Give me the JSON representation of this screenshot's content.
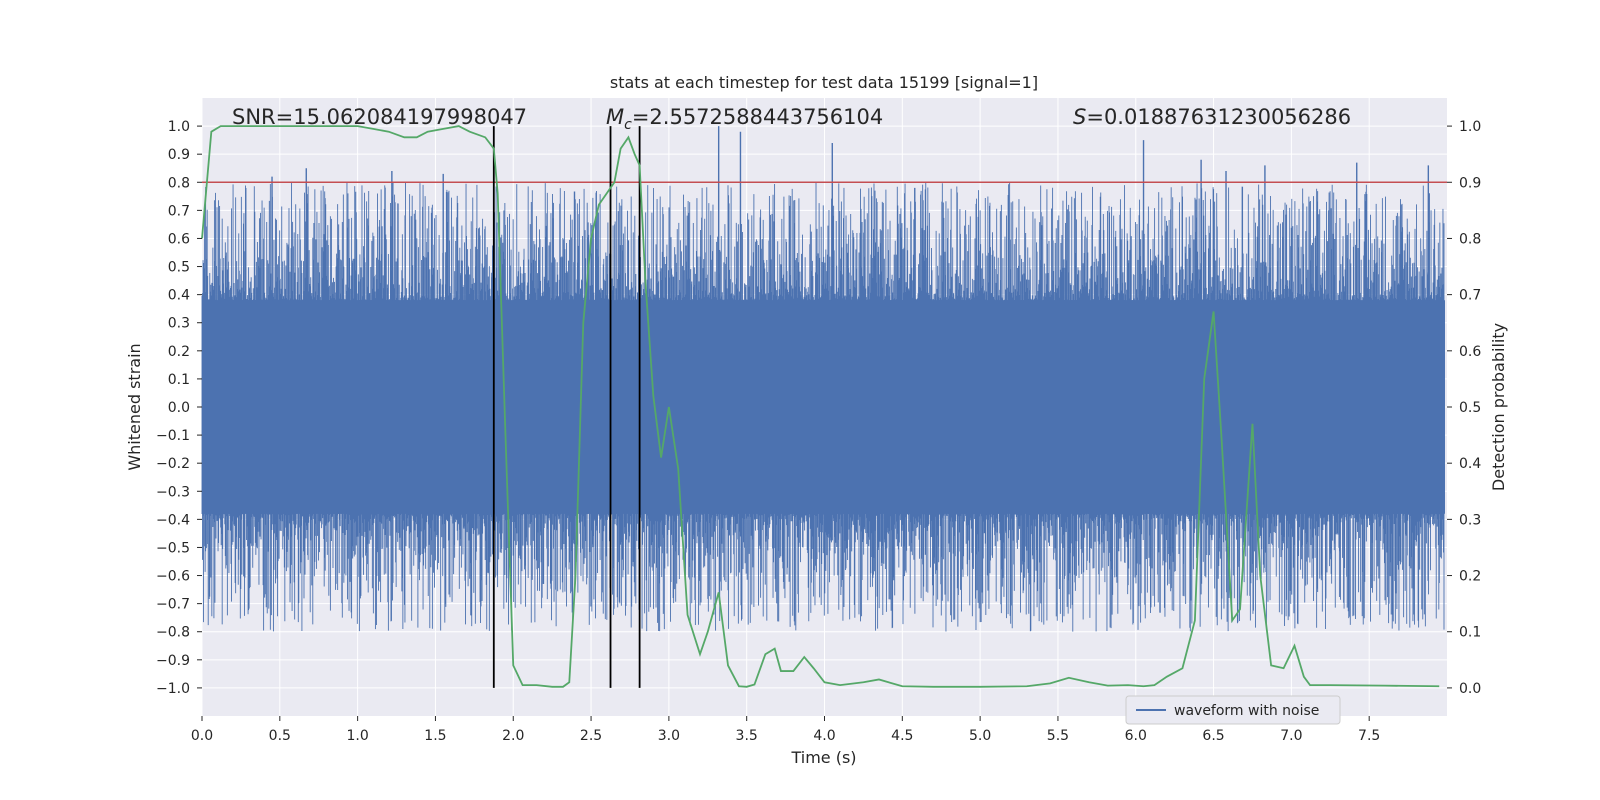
{
  "chart_data": {
    "type": "line",
    "title": "stats at each timestep for test data 15199 [signal=1]",
    "xlabel": "Time (s)",
    "ylabel_left": "Whitened strain",
    "ylabel_right": "Detection probability",
    "xlim": [
      0.0,
      8.0
    ],
    "ylim_left": [
      -1.1,
      1.1
    ],
    "ylim_right": [
      -0.05,
      1.05
    ],
    "x_ticks": [
      "0.0",
      "0.5",
      "1.0",
      "1.5",
      "2.0",
      "2.5",
      "3.0",
      "3.5",
      "4.0",
      "4.5",
      "5.0",
      "5.5",
      "6.0",
      "6.5",
      "7.0",
      "7.5"
    ],
    "y_ticks_left": [
      "1.0",
      "0.9",
      "0.8",
      "0.7",
      "0.6",
      "0.5",
      "0.4",
      "0.3",
      "0.2",
      "0.1",
      "0.0",
      "−0.1",
      "−0.2",
      "−0.3",
      "−0.4",
      "−0.5",
      "−0.6",
      "−0.7",
      "−0.8",
      "−0.9",
      "−1.0"
    ],
    "y_ticks_right": [
      "1.0",
      "0.9",
      "0.8",
      "0.7",
      "0.6",
      "0.5",
      "0.4",
      "0.3",
      "0.2",
      "0.1",
      "0.0"
    ],
    "grid": true,
    "legend": {
      "label": "waveform with noise",
      "placement": "lower-right"
    },
    "threshold_line": {
      "value": 0.9,
      "axis": "right",
      "color": "#c44e52"
    },
    "vertical_markers": [
      1.875,
      2.625,
      2.812
    ],
    "annotations": {
      "snr": "SNR=15.062084197998047",
      "mc_symbol": "M",
      "mc_sub": "c",
      "mc_value": "=2.5572588443756104",
      "s_symbol": "S",
      "s_value": "=0.01887631230056286"
    },
    "series": [
      {
        "name": "waveform with noise",
        "axis": "left",
        "color": "#4c72b0",
        "kind": "dense noise, samples within about ±0.4 to ±0.85 whitened strain",
        "peak_times": [
          0.45,
          0.67,
          1.22,
          1.55,
          3.32,
          3.46,
          4.05,
          4.58,
          6.05,
          6.42,
          6.58,
          6.83,
          7.42,
          7.88
        ],
        "peak_values": [
          0.82,
          0.85,
          0.84,
          0.83,
          1.0,
          0.98,
          0.94,
          0.78,
          0.95,
          0.88,
          0.84,
          0.86,
          0.87,
          0.86
        ]
      },
      {
        "name": "detection probability",
        "axis": "right",
        "color": "#55a868",
        "x": [
          0.0,
          0.06,
          0.12,
          0.2,
          0.3,
          0.5,
          0.8,
          1.0,
          1.1,
          1.2,
          1.3,
          1.38,
          1.45,
          1.55,
          1.65,
          1.72,
          1.82,
          1.875,
          1.9,
          1.95,
          2.0,
          2.06,
          2.15,
          2.25,
          2.32,
          2.36,
          2.4,
          2.45,
          2.5,
          2.55,
          2.6,
          2.65,
          2.69,
          2.74,
          2.78,
          2.812,
          2.85,
          2.9,
          2.95,
          3.0,
          3.06,
          3.12,
          3.2,
          3.25,
          3.32,
          3.38,
          3.45,
          3.5,
          3.55,
          3.62,
          3.68,
          3.72,
          3.8,
          3.87,
          3.93,
          4.0,
          4.1,
          4.25,
          4.35,
          4.5,
          4.7,
          5.0,
          5.3,
          5.45,
          5.57,
          5.7,
          5.82,
          5.95,
          6.05,
          6.12,
          6.2,
          6.3,
          6.38,
          6.44,
          6.5,
          6.55,
          6.62,
          6.67,
          6.75,
          6.8,
          6.87,
          6.95,
          7.02,
          7.08,
          7.12,
          7.25,
          7.6,
          7.95
        ],
        "y": [
          0.8,
          0.99,
          1.0,
          1.0,
          1.0,
          1.0,
          1.0,
          1.0,
          0.995,
          0.99,
          0.98,
          0.98,
          0.99,
          0.995,
          1.0,
          0.99,
          0.98,
          0.96,
          0.88,
          0.45,
          0.04,
          0.005,
          0.005,
          0.002,
          0.002,
          0.01,
          0.2,
          0.65,
          0.8,
          0.86,
          0.88,
          0.9,
          0.96,
          0.98,
          0.95,
          0.93,
          0.72,
          0.52,
          0.41,
          0.5,
          0.39,
          0.13,
          0.06,
          0.1,
          0.17,
          0.04,
          0.003,
          0.002,
          0.006,
          0.06,
          0.07,
          0.03,
          0.03,
          0.055,
          0.035,
          0.01,
          0.005,
          0.01,
          0.015,
          0.003,
          0.002,
          0.002,
          0.003,
          0.008,
          0.018,
          0.01,
          0.004,
          0.005,
          0.003,
          0.005,
          0.02,
          0.035,
          0.12,
          0.55,
          0.67,
          0.45,
          0.12,
          0.14,
          0.47,
          0.2,
          0.04,
          0.035,
          0.075,
          0.02,
          0.005,
          0.005,
          0.004,
          0.003
        ]
      }
    ]
  }
}
